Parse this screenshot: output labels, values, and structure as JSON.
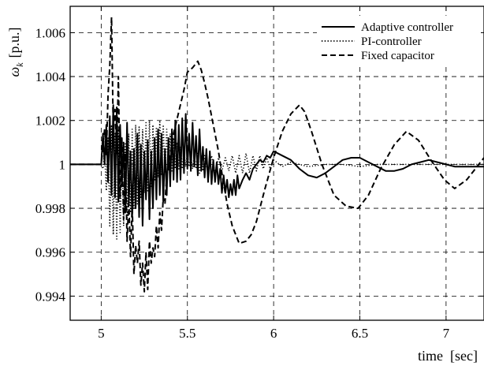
{
  "chart_data": {
    "type": "line",
    "title": "",
    "xlabel": "time  [sec]",
    "ylabel_symbol": "ω",
    "ylabel_subscript": "k",
    "ylabel_unit": "[p.u.]",
    "xlim": [
      4.82,
      7.22
    ],
    "ylim": [
      0.9929,
      1.0072
    ],
    "xticks": [
      5,
      5.5,
      6,
      6.5,
      7
    ],
    "xtick_labels": [
      "5",
      "5.5",
      "6",
      "6.5",
      "7"
    ],
    "yticks": [
      0.994,
      0.996,
      0.998,
      1,
      1.002,
      1.004,
      1.006
    ],
    "ytick_labels": [
      "0.994",
      "0.996",
      "0.998",
      "1",
      "1.002",
      "1.004",
      "1.006"
    ],
    "grid": true,
    "legend_position": "top-right",
    "series": [
      {
        "name": "Adaptive controller",
        "style": "solid",
        "x": [
          4.82,
          5.0,
          5.01,
          5.02,
          5.03,
          5.04,
          5.05,
          5.06,
          5.07,
          5.08,
          5.09,
          5.1,
          5.11,
          5.12,
          5.13,
          5.14,
          5.15,
          5.16,
          5.17,
          5.18,
          5.19,
          5.2,
          5.21,
          5.22,
          5.23,
          5.24,
          5.25,
          5.26,
          5.27,
          5.28,
          5.29,
          5.3,
          5.31,
          5.32,
          5.33,
          5.34,
          5.35,
          5.36,
          5.37,
          5.38,
          5.39,
          5.4,
          5.41,
          5.42,
          5.43,
          5.44,
          5.45,
          5.46,
          5.47,
          5.48,
          5.49,
          5.5,
          5.51,
          5.52,
          5.53,
          5.54,
          5.55,
          5.56,
          5.57,
          5.58,
          5.59,
          5.6,
          5.61,
          5.62,
          5.63,
          5.64,
          5.65,
          5.66,
          5.67,
          5.68,
          5.69,
          5.7,
          5.71,
          5.72,
          5.73,
          5.74,
          5.75,
          5.76,
          5.77,
          5.78,
          5.79,
          5.8,
          5.82,
          5.84,
          5.86,
          5.88,
          5.9,
          5.92,
          5.94,
          5.96,
          5.98,
          6.0,
          6.05,
          6.1,
          6.15,
          6.2,
          6.25,
          6.3,
          6.35,
          6.4,
          6.45,
          6.5,
          6.55,
          6.6,
          6.65,
          6.7,
          6.75,
          6.8,
          6.85,
          6.9,
          6.95,
          7.0,
          7.05,
          7.1,
          7.15,
          7.22
        ],
        "y": [
          1.0,
          1.0,
          1.0014,
          1.0,
          1.0018,
          0.9992,
          1.0022,
          0.9986,
          1.0027,
          0.9985,
          1.0026,
          0.9983,
          1.0018,
          0.999,
          1.001,
          0.9978,
          1.0019,
          0.9982,
          1.0006,
          0.9976,
          1.0007,
          0.998,
          1.0014,
          0.9976,
          1.0009,
          0.9972,
          1.0006,
          0.9984,
          1.0011,
          0.9975,
          1.0006,
          0.998,
          1.0012,
          0.9984,
          1.0016,
          0.9986,
          1.0014,
          0.9983,
          1.0007,
          0.9986,
          1.0012,
          0.999,
          1.0016,
          0.9993,
          1.002,
          0.9992,
          1.0018,
          0.9993,
          1.0021,
          0.9996,
          1.0023,
          0.9998,
          1.0014,
          0.9997,
          1.0019,
          0.9999,
          1.0013,
          0.9995,
          1.0016,
          0.9997,
          1.0008,
          0.9994,
          1.0007,
          0.9992,
          1.0006,
          0.9991,
          1.0002,
          0.9992,
          1.0001,
          0.9991,
          0.9998,
          0.9987,
          0.9995,
          0.9987,
          0.9993,
          0.9985,
          0.9991,
          0.9986,
          0.9993,
          0.9986,
          0.9995,
          0.9989,
          0.9993,
          0.9996,
          0.9993,
          0.9998,
          1.0,
          1.0002,
          1.0001,
          1.0004,
          1.0003,
          1.0006,
          1.0004,
          1.0002,
          0.9998,
          0.9995,
          0.9994,
          0.9996,
          0.9999,
          1.0002,
          1.0003,
          1.0003,
          1.0001,
          0.9999,
          0.9997,
          0.9997,
          0.9998,
          1.0,
          1.0001,
          1.0002,
          1.0001,
          1.0,
          0.9999,
          0.9999,
          0.9999,
          0.9999
        ]
      },
      {
        "name": "PI-controller",
        "style": "dotted",
        "x": [
          4.82,
          5.0,
          5.01,
          5.02,
          5.03,
          5.04,
          5.05,
          5.06,
          5.07,
          5.08,
          5.09,
          5.1,
          5.11,
          5.12,
          5.13,
          5.14,
          5.15,
          5.16,
          5.17,
          5.18,
          5.19,
          5.2,
          5.21,
          5.22,
          5.23,
          5.24,
          5.25,
          5.26,
          5.27,
          5.28,
          5.29,
          5.3,
          5.31,
          5.32,
          5.33,
          5.34,
          5.35,
          5.36,
          5.37,
          5.38,
          5.39,
          5.4,
          5.41,
          5.42,
          5.43,
          5.44,
          5.45,
          5.46,
          5.47,
          5.48,
          5.49,
          5.5,
          5.51,
          5.52,
          5.53,
          5.54,
          5.55,
          5.56,
          5.57,
          5.58,
          5.59,
          5.6,
          5.62,
          5.64,
          5.66,
          5.68,
          5.7,
          5.72,
          5.74,
          5.76,
          5.78,
          5.8,
          5.82,
          5.84,
          5.86,
          5.88,
          5.9,
          5.92,
          5.94,
          5.96,
          5.98,
          6.0,
          6.05,
          6.1,
          6.2,
          6.3,
          6.4,
          6.5,
          6.6,
          6.7,
          6.8,
          6.9,
          7.0,
          7.1,
          7.22
        ],
        "y": [
          1.0,
          1.0,
          0.9998,
          1.0006,
          0.9988,
          1.0012,
          0.9972,
          1.0018,
          0.9968,
          1.0014,
          0.9966,
          1.0016,
          0.9969,
          1.0012,
          0.9972,
          1.001,
          0.9975,
          1.0014,
          0.9978,
          1.0016,
          0.998,
          1.0018,
          0.9982,
          1.0017,
          0.9985,
          1.0016,
          0.9987,
          1.0019,
          0.9988,
          1.002,
          0.999,
          1.0018,
          0.9993,
          1.0017,
          0.9994,
          1.002,
          0.9995,
          1.0018,
          0.9996,
          1.0016,
          0.9997,
          1.0014,
          0.9997,
          1.0012,
          0.9998,
          1.001,
          0.9998,
          1.0008,
          0.9998,
          1.0006,
          0.9999,
          1.0005,
          0.9999,
          1.0004,
          0.9998,
          1.0004,
          0.9998,
          1.0005,
          0.9996,
          1.0004,
          0.9997,
          1.0004,
          0.9996,
          1.0004,
          0.9996,
          1.0003,
          0.9997,
          1.0003,
          0.9997,
          1.0004,
          0.9996,
          1.0004,
          0.9996,
          1.0005,
          0.9996,
          1.0004,
          0.9997,
          1.0004,
          0.9998,
          1.0003,
          0.9998,
          1.0002,
          0.9999,
          1.0001,
          0.9999,
          1.0,
          1.0,
          0.9999,
          1.0,
          1.0,
          1.0,
          1.0,
          1.0,
          1.0,
          1.0
        ]
      },
      {
        "name": "Fixed capacitor",
        "style": "dashed",
        "x": [
          4.82,
          5.0,
          5.01,
          5.02,
          5.03,
          5.04,
          5.05,
          5.06,
          5.07,
          5.08,
          5.09,
          5.1,
          5.11,
          5.12,
          5.13,
          5.14,
          5.15,
          5.16,
          5.17,
          5.18,
          5.19,
          5.2,
          5.21,
          5.22,
          5.23,
          5.24,
          5.25,
          5.26,
          5.27,
          5.28,
          5.29,
          5.3,
          5.31,
          5.32,
          5.33,
          5.34,
          5.35,
          5.36,
          5.37,
          5.38,
          5.4,
          5.42,
          5.45,
          5.48,
          5.5,
          5.53,
          5.56,
          5.58,
          5.6,
          5.62,
          5.65,
          5.68,
          5.7,
          5.73,
          5.76,
          5.8,
          5.84,
          5.87,
          5.9,
          5.95,
          6.0,
          6.05,
          6.1,
          6.15,
          6.18,
          6.22,
          6.28,
          6.35,
          6.42,
          6.49,
          6.55,
          6.62,
          6.7,
          6.77,
          6.84,
          6.92,
          6.99,
          7.05,
          7.12,
          7.22
        ],
        "y": [
          1.0,
          1.0,
          1.0008,
          1.0016,
          1.0004,
          1.0032,
          1.0045,
          1.0067,
          1.0015,
          1.0025,
          1.0005,
          1.004,
          0.9985,
          1.0012,
          0.9975,
          1.0005,
          0.9965,
          0.9984,
          0.9958,
          0.9982,
          0.995,
          0.9963,
          0.9955,
          0.9965,
          0.9945,
          0.9955,
          0.9942,
          0.996,
          0.9943,
          0.9965,
          0.9955,
          0.9962,
          0.9958,
          0.9972,
          0.9962,
          0.9978,
          0.997,
          0.9985,
          0.9982,
          0.9995,
          1.0004,
          1.0014,
          1.0024,
          1.0034,
          1.0042,
          1.0044,
          1.0047,
          1.0043,
          1.0037,
          1.003,
          1.0018,
          1.0006,
          0.9996,
          0.9982,
          0.9972,
          0.9964,
          0.9965,
          0.9968,
          0.9974,
          0.9989,
          1.0003,
          1.0015,
          1.0023,
          1.0027,
          1.0024,
          1.0015,
          1.0,
          0.9986,
          0.9981,
          0.998,
          0.9986,
          0.9998,
          1.0009,
          1.0015,
          1.0011,
          1.0001,
          0.9993,
          0.9989,
          0.9993,
          1.0003
        ]
      }
    ]
  }
}
